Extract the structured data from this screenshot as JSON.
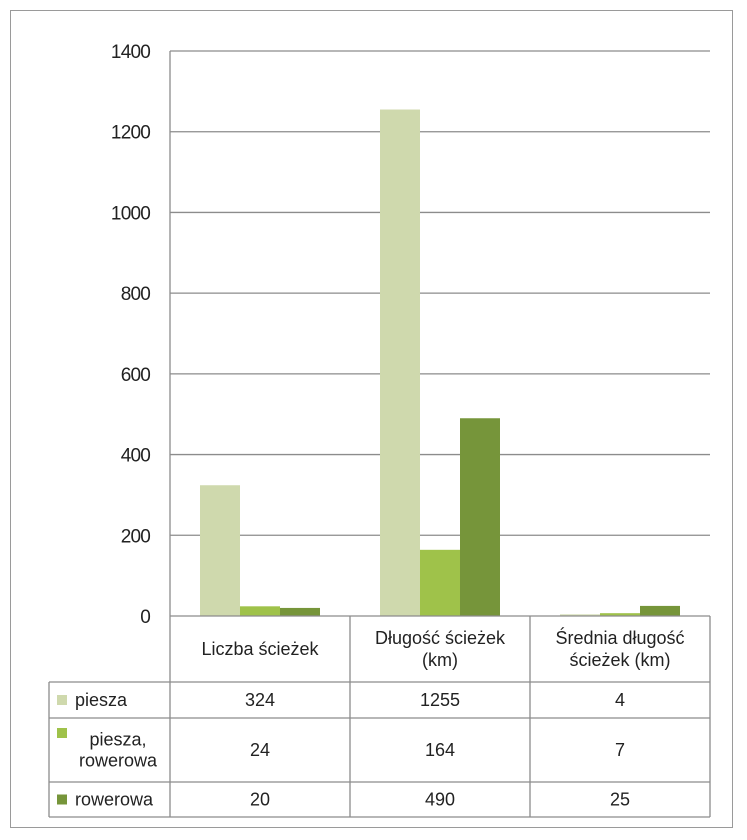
{
  "chart_data": {
    "type": "bar",
    "categories": [
      "Liczba ścieżek",
      "Długość ścieżek (km)",
      "Średnia długość ścieżek (km)"
    ],
    "category_lines": [
      [
        "Liczba ścieżek"
      ],
      [
        "Długość ścieżek",
        "(km)"
      ],
      [
        "Średnia długość",
        "ścieżek (km)"
      ]
    ],
    "series": [
      {
        "name": "piesza",
        "name_lines": [
          "piesza"
        ],
        "values": [
          324,
          1255,
          4
        ],
        "color": "#cfd9ad"
      },
      {
        "name": "piesza, rowerowa",
        "name_lines": [
          "piesza,",
          "rowerowa"
        ],
        "values": [
          24,
          164,
          7
        ],
        "color": "#9fc24a"
      },
      {
        "name": "rowerowa",
        "name_lines": [
          "rowerowa"
        ],
        "values": [
          20,
          490,
          25
        ],
        "color": "#76953a"
      }
    ],
    "ylim": [
      0,
      1400
    ],
    "yticks": [
      0,
      200,
      400,
      600,
      800,
      1000,
      1200,
      1400
    ],
    "grid": true,
    "legend": "data table, left"
  }
}
